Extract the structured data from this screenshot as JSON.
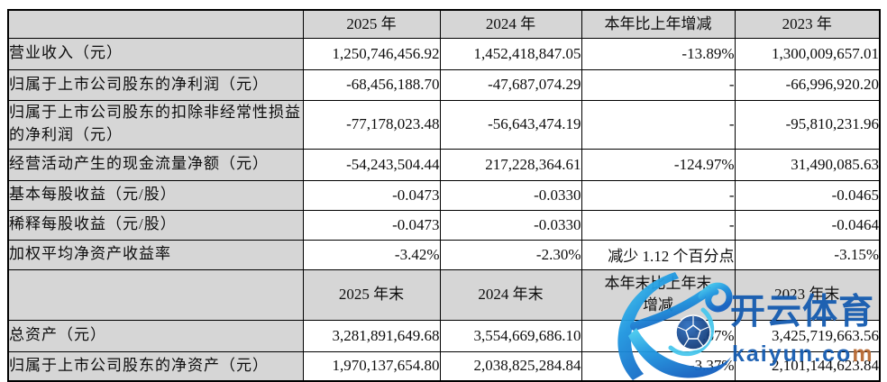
{
  "table": {
    "period_header": {
      "blank": "",
      "cols": [
        "2025 年",
        "2024 年",
        "本年比上年增减",
        "2023 年"
      ]
    },
    "rows_period": [
      {
        "label": "营业收入（元）",
        "y2025": "1,250,746,456.92",
        "y2024": "1,452,418,847.05",
        "change": "-13.89%",
        "y2023": "1,300,009,657.01"
      },
      {
        "label": "归属于上市公司股东的净利润（元）",
        "y2025": "-68,456,188.70",
        "y2024": "-47,687,074.29",
        "change": "-",
        "y2023": "-66,996,920.20"
      },
      {
        "label": "归属于上市公司股东的扣除非经常性损益的净利润（元）",
        "y2025": "-77,178,023.48",
        "y2024": "-56,643,474.19",
        "change": "-",
        "y2023": "-95,810,231.96"
      },
      {
        "label": "经营活动产生的现金流量净额（元）",
        "y2025": "-54,243,504.44",
        "y2024": "217,228,364.61",
        "change": "-124.97%",
        "y2023": "31,490,085.63"
      },
      {
        "label": "基本每股收益（元/股）",
        "y2025": "-0.0473",
        "y2024": "-0.0330",
        "change": "-",
        "y2023": "-0.0465"
      },
      {
        "label": "稀释每股收益（元/股）",
        "y2025": "-0.0473",
        "y2024": "-0.0330",
        "change": "-",
        "y2023": "-0.0464"
      },
      {
        "label": "加权平均净资产收益率",
        "y2025": "-3.42%",
        "y2024": "-2.30%",
        "change": "减少 1.12 个百分点",
        "y2023": "-3.15%"
      }
    ],
    "period_end_header": {
      "blank": "",
      "cols": [
        "2025 年末",
        "2024 年末",
        "本年末比上年末增减",
        "2023 年末"
      ]
    },
    "rows_period_end": [
      {
        "label": "总资产（元）",
        "y2025": "3,281,891,649.68",
        "y2024": "3,554,669,686.10",
        "change": "-7.67%",
        "y2023": "3,425,719,663.56"
      },
      {
        "label": "归属于上市公司股东的净资产（元）",
        "y2025": "1,970,137,654.80",
        "y2024": "2,038,825,284.84",
        "change": "-3.37%",
        "y2023": "2,101,144,623.84"
      }
    ]
  },
  "watermark": {
    "brand": "开云体育",
    "domain_prefix": "kaiyun.co",
    "domain_suffix": "m",
    "blue_dark": "#155bb0",
    "blue_mid": "#1e96e0",
    "blue_light": "#4fd4f2",
    "ball_navy": "#0e2f66",
    "accent_orange": "#b96a33"
  }
}
